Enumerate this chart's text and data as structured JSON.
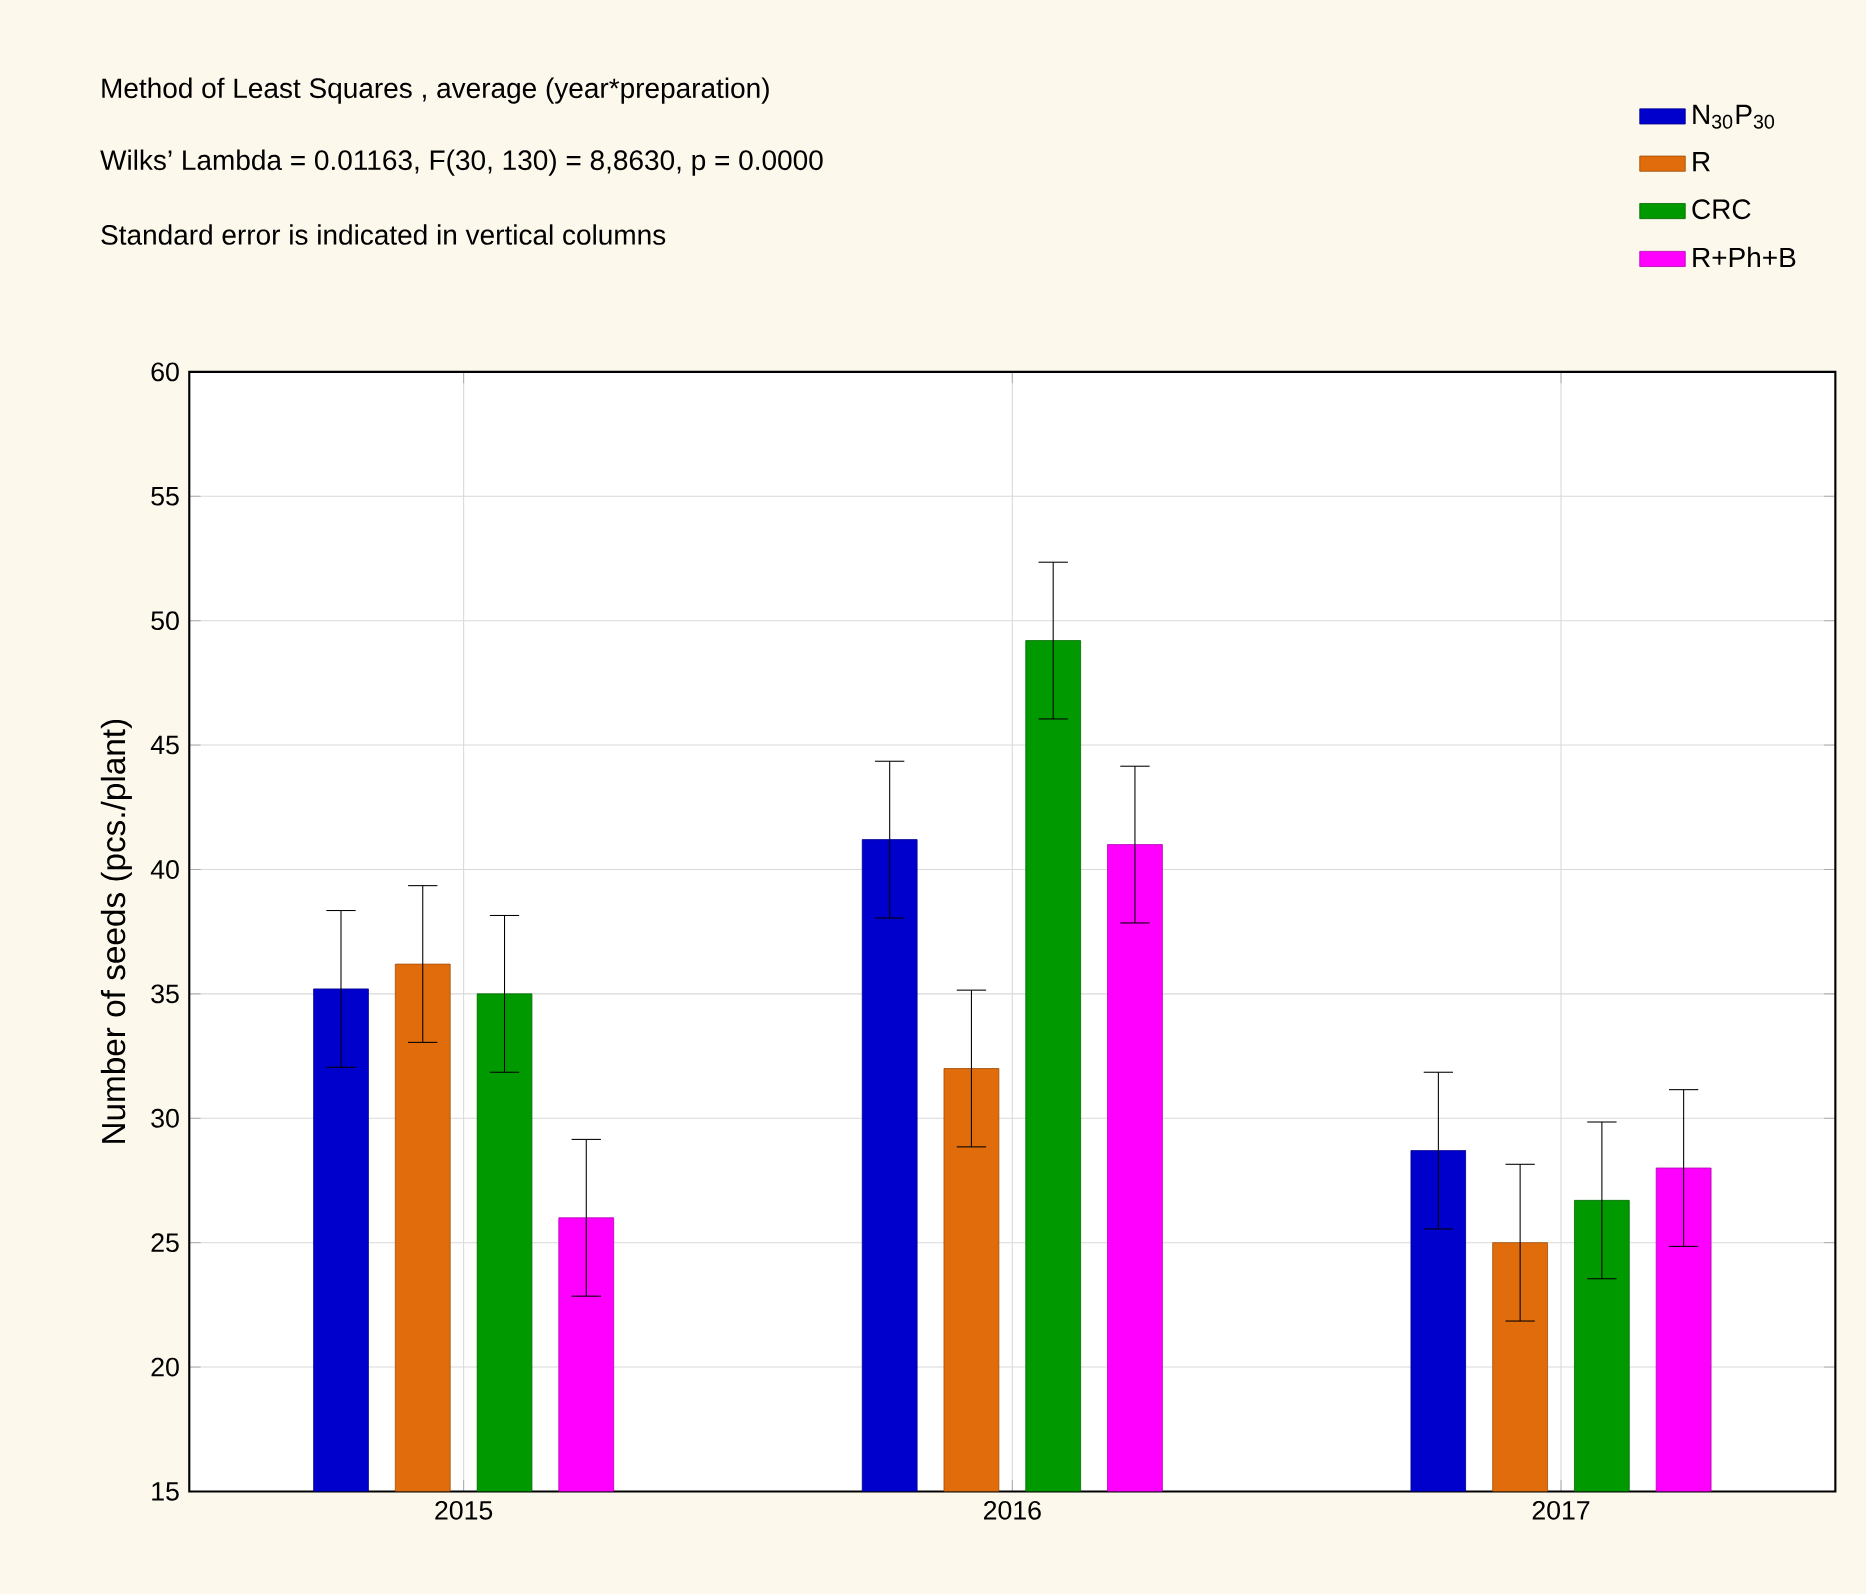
{
  "chart_data": {
    "type": "bar",
    "title": "Method of Least Squares , average (year*preparation)",
    "subtitle": "Wilks’ Lambda = 0.01163, F(30, 130) = 8,8630, p = 0.0000",
    "annotations": [
      "Standard error is indicated in vertical columns"
    ],
    "ylabel": "Number of seeds (pcs./plant)",
    "categories": [
      "2015",
      "2016",
      "2017"
    ],
    "series": [
      {
        "name": "N$_{30}$P$_{30}$",
        "color": "#0000cc",
        "values": [
          35.2,
          41.2,
          28.7
        ],
        "errors": [
          3.15,
          3.15,
          3.15
        ]
      },
      {
        "name": "R",
        "color": "#e06c0c",
        "values": [
          36.2,
          32.0,
          25.0
        ],
        "errors": [
          3.15,
          3.15,
          3.15
        ]
      },
      {
        "name": "CRC",
        "color": "#009900",
        "values": [
          35.0,
          49.2,
          26.7
        ],
        "errors": [
          3.15,
          3.15,
          3.15
        ]
      },
      {
        "name": "R+Ph+B",
        "color": "#ff00ff",
        "values": [
          26.0,
          41.0,
          28.0
        ],
        "errors": [
          3.15,
          3.15,
          3.15
        ]
      }
    ],
    "ylim": [
      15,
      60
    ],
    "yticks": [
      15,
      20,
      25,
      30,
      35,
      40,
      45,
      50,
      55,
      60
    ],
    "grid": true,
    "legend": "top right"
  }
}
